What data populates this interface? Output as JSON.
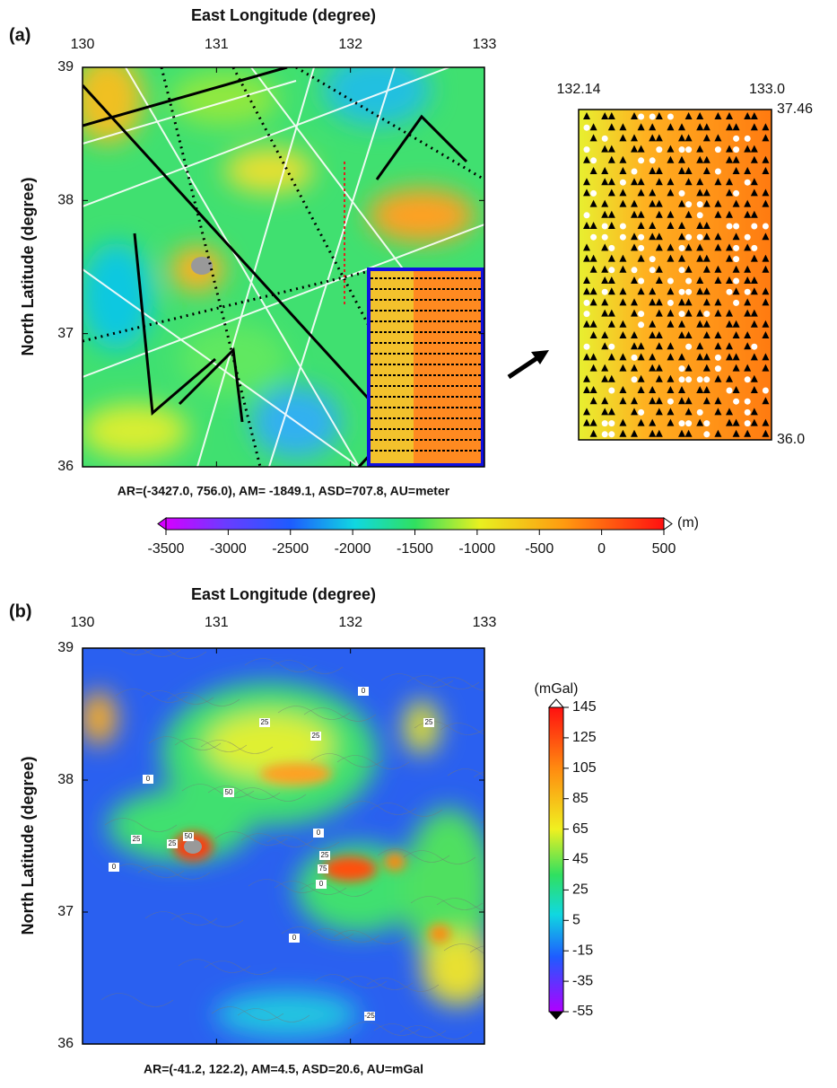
{
  "panels": [
    {
      "label": "(a)",
      "x_axis_title": "East Longitude (degree)",
      "y_axis_title": "North Latitude (degree)",
      "xlim": [
        130,
        133
      ],
      "ylim": [
        36,
        39
      ],
      "xticks": [
        130,
        131,
        132,
        133
      ],
      "yticks": [
        36,
        37,
        38,
        39
      ],
      "stats": "AR=(-3427.0, 756.0), AM= -1849.1, ASD=707.8, AU=meter",
      "colorbar": {
        "unit": "(m)",
        "ticks": [
          -3500,
          -3000,
          -2500,
          -2000,
          -1500,
          -1000,
          -500,
          0,
          500
        ]
      },
      "inset": {
        "xticks": [
          132.14,
          {
            "value": 133,
            "label": "133.0"
          }
        ],
        "yticks": [
          37.46,
          {
            "value": 36,
            "label": "36.0"
          }
        ]
      }
    },
    {
      "label": "(b)",
      "x_axis_title": "East Longitude (degree)",
      "y_axis_title": "North Latitude (degree)",
      "xlim": [
        130,
        133
      ],
      "ylim": [
        36,
        39
      ],
      "xticks": [
        130,
        131,
        132,
        133
      ],
      "yticks": [
        36,
        37,
        38,
        39
      ],
      "stats": "AR=(-41.2, 122.2), AM=4.5, ASD=20.6, AU=mGal",
      "colorbar": {
        "unit": "(mGal)",
        "ticks": [
          145,
          125,
          105,
          85,
          65,
          45,
          25,
          5,
          -15,
          -35,
          -55
        ]
      },
      "contour_labels": [
        "0",
        "25",
        "25",
        "25",
        "50",
        "0",
        "25",
        "25",
        "50",
        "0",
        "0",
        "25",
        "75",
        "0",
        "0",
        "-25"
      ]
    }
  ]
}
